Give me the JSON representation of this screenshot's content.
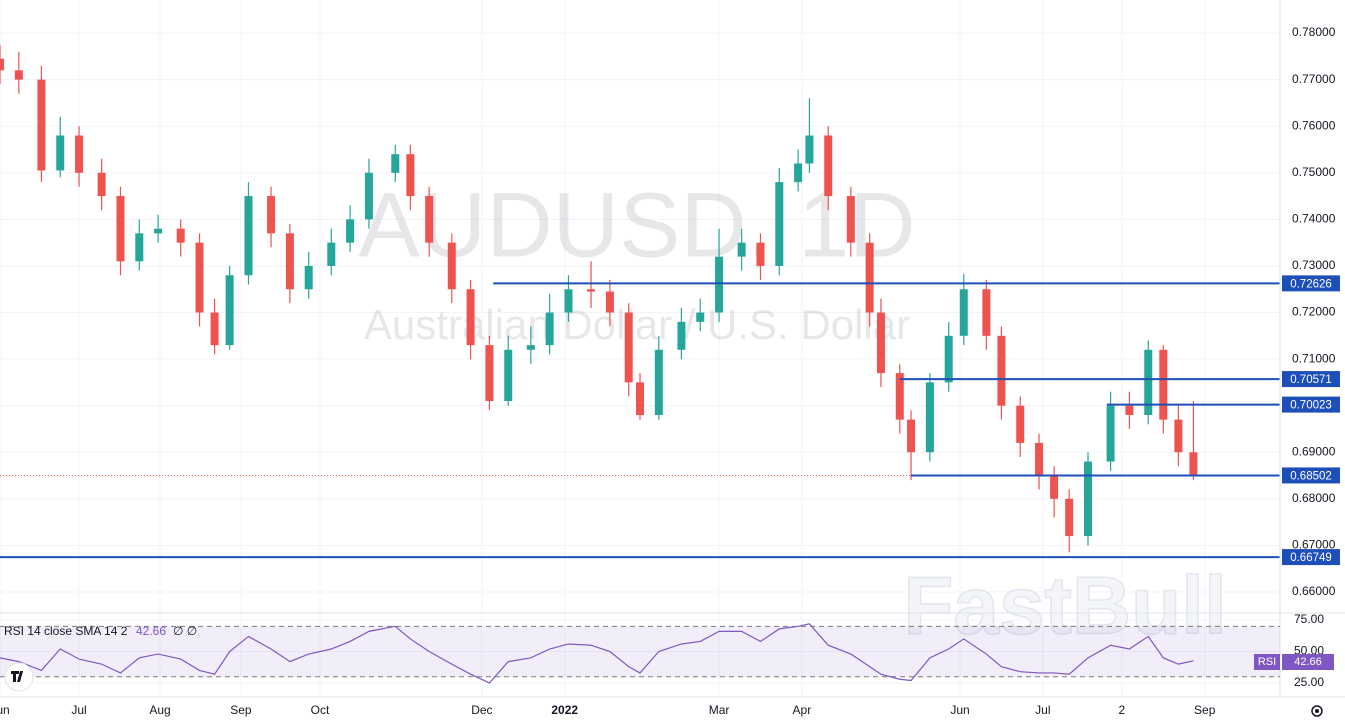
{
  "chart_data": {
    "type": "candlestick",
    "title": "AUDUSD, 1D",
    "subtitle": "Australian Dollar / U.S. Dollar",
    "watermark": "FastBull",
    "up_color": "#26a69a",
    "down_color": "#ef5350",
    "level_color": "#1e4fb8",
    "grid": true,
    "xlim": [
      0,
      340
    ],
    "xticks": [
      {
        "value": 0,
        "label": "Jun"
      },
      {
        "value": 21,
        "label": "Jul"
      },
      {
        "value": 42.5,
        "label": "Aug"
      },
      {
        "value": 64,
        "label": "Sep"
      },
      {
        "value": 85,
        "label": "Oct"
      },
      {
        "value": 128,
        "label": "Dec"
      },
      {
        "value": 150,
        "label": "2022"
      },
      {
        "value": 191,
        "label": "Mar"
      },
      {
        "value": 213,
        "label": "Apr"
      },
      {
        "value": 255,
        "label": "Jun"
      },
      {
        "value": 277,
        "label": "Jul"
      },
      {
        "value": 298,
        "label": "2"
      },
      {
        "value": 320,
        "label": "Sep"
      }
    ],
    "ylim": [
      0.6557,
      0.7871
    ],
    "yticks": [
      {
        "value": 0.78,
        "label": "0.78000"
      },
      {
        "value": 0.77,
        "label": "0.77000"
      },
      {
        "value": 0.76,
        "label": "0.76000"
      },
      {
        "value": 0.75,
        "label": "0.75000"
      },
      {
        "value": 0.74,
        "label": "0.74000"
      },
      {
        "value": 0.73,
        "label": "0.73000"
      },
      {
        "value": 0.72,
        "label": "0.72000"
      },
      {
        "value": 0.71,
        "label": "0.71000"
      },
      {
        "value": 0.7,
        "label": "0.70000"
      },
      {
        "value": 0.69,
        "label": "0.69000"
      },
      {
        "value": 0.68,
        "label": "0.68000"
      },
      {
        "value": 0.67,
        "label": "0.67000"
      },
      {
        "value": 0.66,
        "label": "0.66000"
      }
    ],
    "x": [
      0,
      5,
      11,
      16,
      21,
      27,
      32,
      37,
      42,
      48,
      53,
      57,
      61,
      66,
      72,
      77,
      82,
      88,
      93,
      98,
      105,
      109,
      114,
      120,
      125,
      130,
      135,
      141,
      146,
      151,
      157,
      162,
      167,
      170,
      175,
      181,
      186,
      191,
      197,
      202,
      207,
      212,
      215,
      220,
      226,
      231,
      234,
      239,
      242,
      247,
      252,
      256,
      262,
      266,
      271,
      276,
      280,
      284,
      289,
      295,
      300,
      305,
      309,
      313,
      317
    ],
    "open": [
      0.7745,
      0.772,
      0.77,
      0.7505,
      0.758,
      0.75,
      0.745,
      0.731,
      0.737,
      0.738,
      0.735,
      0.72,
      0.713,
      0.728,
      0.745,
      0.737,
      0.725,
      0.73,
      0.735,
      0.74,
      0.75,
      0.754,
      0.745,
      0.735,
      0.725,
      0.713,
      0.701,
      0.712,
      0.713,
      0.72,
      0.725,
      0.7245,
      0.72,
      0.705,
      0.698,
      0.712,
      0.718,
      0.72,
      0.732,
      0.735,
      0.73,
      0.748,
      0.752,
      0.758,
      0.745,
      0.735,
      0.72,
      0.707,
      0.697,
      0.69,
      0.705,
      0.715,
      0.725,
      0.715,
      0.7,
      0.692,
      0.685,
      0.68,
      0.672,
      0.688,
      0.7,
      0.698,
      0.712,
      0.697,
      0.69
    ],
    "high": [
      0.7775,
      0.776,
      0.773,
      0.762,
      0.76,
      0.753,
      0.747,
      0.74,
      0.741,
      0.74,
      0.737,
      0.723,
      0.73,
      0.748,
      0.747,
      0.739,
      0.733,
      0.738,
      0.743,
      0.753,
      0.756,
      0.756,
      0.747,
      0.737,
      0.727,
      0.715,
      0.715,
      0.717,
      0.724,
      0.728,
      0.731,
      0.727,
      0.722,
      0.707,
      0.715,
      0.721,
      0.723,
      0.738,
      0.738,
      0.737,
      0.751,
      0.755,
      0.766,
      0.76,
      0.747,
      0.737,
      0.723,
      0.709,
      0.699,
      0.707,
      0.718,
      0.7283,
      0.727,
      0.717,
      0.702,
      0.694,
      0.687,
      0.682,
      0.69,
      0.703,
      0.703,
      0.714,
      0.713,
      0.7,
      0.701
    ],
    "low": [
      0.769,
      0.767,
      0.748,
      0.749,
      0.747,
      0.742,
      0.728,
      0.729,
      0.735,
      0.732,
      0.717,
      0.711,
      0.712,
      0.726,
      0.734,
      0.722,
      0.723,
      0.728,
      0.733,
      0.738,
      0.748,
      0.742,
      0.732,
      0.722,
      0.71,
      0.699,
      0.7,
      0.709,
      0.711,
      0.718,
      0.721,
      0.717,
      0.702,
      0.697,
      0.697,
      0.71,
      0.716,
      0.718,
      0.729,
      0.727,
      0.728,
      0.746,
      0.75,
      0.742,
      0.732,
      0.717,
      0.704,
      0.694,
      0.684,
      0.688,
      0.703,
      0.713,
      0.712,
      0.697,
      0.689,
      0.682,
      0.676,
      0.6685,
      0.67,
      0.686,
      0.695,
      0.696,
      0.694,
      0.687,
      0.684
    ],
    "close": [
      0.772,
      0.77,
      0.7505,
      0.758,
      0.75,
      0.745,
      0.731,
      0.737,
      0.738,
      0.735,
      0.72,
      0.713,
      0.728,
      0.745,
      0.737,
      0.725,
      0.73,
      0.735,
      0.74,
      0.75,
      0.754,
      0.745,
      0.735,
      0.725,
      0.713,
      0.701,
      0.712,
      0.713,
      0.72,
      0.725,
      0.7245,
      0.72,
      0.705,
      0.698,
      0.712,
      0.718,
      0.72,
      0.732,
      0.735,
      0.73,
      0.748,
      0.752,
      0.758,
      0.745,
      0.735,
      0.72,
      0.707,
      0.697,
      0.69,
      0.705,
      0.715,
      0.725,
      0.715,
      0.7,
      0.692,
      0.685,
      0.68,
      0.672,
      0.688,
      0.7,
      0.698,
      0.712,
      0.697,
      0.69,
      0.685
    ],
    "levels": [
      {
        "value": 0.72626,
        "from": 131
      },
      {
        "value": 0.70571,
        "from": 239
      },
      {
        "value": 0.70023,
        "from": 294
      },
      {
        "value": 0.68502,
        "from": 242
      },
      {
        "value": 0.66749,
        "from": 0
      }
    ],
    "rsi": {
      "label": "RSI 14 close SMA 14 2",
      "current": 42.66,
      "extra": "∅ ∅",
      "badge": "RSI",
      "color": "#7e57c2",
      "band": [
        70,
        30
      ],
      "ylim": [
        15.5,
        79
      ],
      "yticks": [
        {
          "value": 75,
          "label": "75.00"
        },
        {
          "value": 50,
          "label": "50.00"
        },
        {
          "value": 25,
          "label": "25.00"
        }
      ],
      "values": [
        45,
        42,
        35,
        52,
        44,
        40,
        33,
        45,
        48,
        44,
        35,
        32,
        50,
        62,
        52,
        42,
        48,
        52,
        58,
        66,
        70,
        60,
        50,
        40,
        32,
        25,
        42,
        45,
        52,
        56,
        55,
        50,
        38,
        33,
        50,
        56,
        58,
        66,
        66,
        58,
        68,
        70,
        72,
        55,
        48,
        38,
        32,
        28,
        27,
        45,
        52,
        60,
        48,
        38,
        34,
        33,
        33,
        32,
        45,
        55,
        52,
        62,
        45,
        40,
        42.66
      ]
    }
  }
}
